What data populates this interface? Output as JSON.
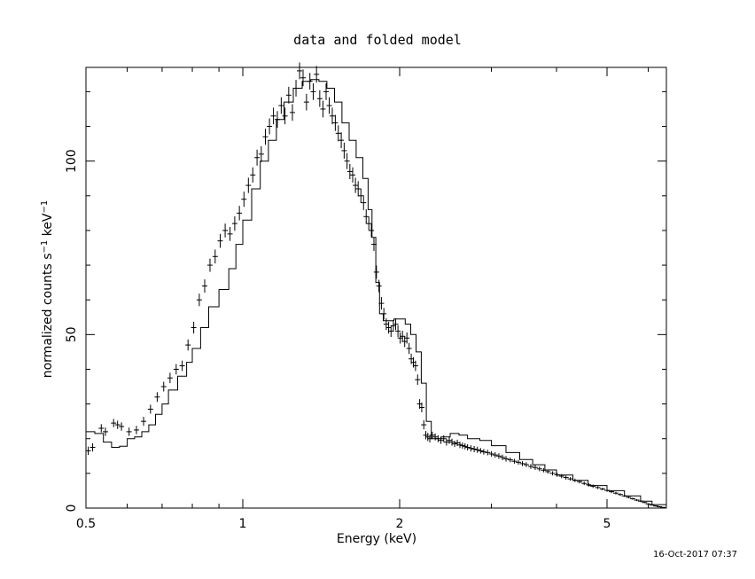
{
  "chart_data": {
    "type": "line",
    "title": "data and folded model",
    "xlabel": "Energy (keV)",
    "ylabel_parts": {
      "base": "normalized counts s",
      "exp1": "−1",
      "mid": " keV",
      "exp2": "−1"
    },
    "x_scale": "log",
    "xlim": [
      0.5,
      6.5
    ],
    "ylim": [
      0,
      127
    ],
    "x_ticks": [
      {
        "value": 0.5,
        "label": "0.5"
      },
      {
        "value": 1,
        "label": "1"
      },
      {
        "value": 2,
        "label": "2"
      },
      {
        "value": 5,
        "label": "5"
      }
    ],
    "y_ticks": [
      {
        "value": 0,
        "label": "0"
      },
      {
        "value": 50,
        "label": "50"
      },
      {
        "value": 100,
        "label": "100"
      }
    ],
    "series": [
      {
        "style": "step-line",
        "points": [
          [
            0.5,
            22.0
          ],
          [
            0.52,
            21.5
          ],
          [
            0.54,
            19.0
          ],
          [
            0.56,
            17.5
          ],
          [
            0.58,
            17.8
          ],
          [
            0.6,
            20.0
          ],
          [
            0.62,
            20.5
          ],
          [
            0.64,
            22.0
          ],
          [
            0.66,
            24.0
          ],
          [
            0.68,
            27.0
          ],
          [
            0.7,
            30.0
          ],
          [
            0.72,
            34.0
          ],
          [
            0.75,
            38.0
          ],
          [
            0.78,
            42.0
          ],
          [
            0.8,
            46.0
          ],
          [
            0.83,
            52.0
          ],
          [
            0.86,
            58.0
          ],
          [
            0.9,
            63.0
          ],
          [
            0.94,
            69.0
          ],
          [
            0.97,
            76.0
          ],
          [
            1.0,
            83.0
          ],
          [
            1.04,
            92.0
          ],
          [
            1.08,
            100.0
          ],
          [
            1.12,
            106.0
          ],
          [
            1.16,
            112.0
          ],
          [
            1.2,
            117.0
          ],
          [
            1.25,
            121.0
          ],
          [
            1.3,
            123.0
          ],
          [
            1.35,
            123.5
          ],
          [
            1.4,
            123.0
          ],
          [
            1.45,
            121.0
          ],
          [
            1.5,
            117.0
          ],
          [
            1.55,
            111.0
          ],
          [
            1.6,
            106.0
          ],
          [
            1.65,
            101.0
          ],
          [
            1.7,
            95.0
          ],
          [
            1.74,
            86.0
          ],
          [
            1.77,
            78.0
          ],
          [
            1.8,
            65.0
          ],
          [
            1.83,
            56.0
          ],
          [
            1.86,
            54.0
          ],
          [
            1.9,
            54.0
          ],
          [
            1.95,
            54.5
          ],
          [
            2.0,
            54.5
          ],
          [
            2.05,
            53.0
          ],
          [
            2.1,
            50.0
          ],
          [
            2.15,
            45.0
          ],
          [
            2.2,
            36.0
          ],
          [
            2.25,
            25.0
          ],
          [
            2.3,
            20.0
          ],
          [
            2.4,
            20.5
          ],
          [
            2.5,
            21.5
          ],
          [
            2.6,
            21.0
          ],
          [
            2.7,
            20.0
          ],
          [
            2.85,
            19.5
          ],
          [
            3.0,
            18.0
          ],
          [
            3.2,
            16.0
          ],
          [
            3.4,
            14.0
          ],
          [
            3.6,
            12.5
          ],
          [
            3.8,
            11.0
          ],
          [
            4.0,
            9.5
          ],
          [
            4.3,
            8.0
          ],
          [
            4.6,
            6.5
          ],
          [
            5.0,
            5.0
          ],
          [
            5.4,
            3.5
          ],
          [
            5.8,
            2.0
          ],
          [
            6.1,
            1.0
          ],
          [
            6.5,
            0.3
          ]
        ]
      },
      {
        "style": "errorbar-crosses",
        "points": [
          [
            0.505,
            16.5,
            1.2
          ],
          [
            0.515,
            17.5,
            1.2
          ],
          [
            0.535,
            23.0,
            1.2
          ],
          [
            0.545,
            22.0,
            1.2
          ],
          [
            0.565,
            24.5,
            1.2
          ],
          [
            0.575,
            24.0,
            1.2
          ],
          [
            0.585,
            23.5,
            1.2
          ],
          [
            0.605,
            22.0,
            1.2
          ],
          [
            0.625,
            22.5,
            1.2
          ],
          [
            0.645,
            25.0,
            1.3
          ],
          [
            0.665,
            28.5,
            1.3
          ],
          [
            0.685,
            32.0,
            1.4
          ],
          [
            0.705,
            35.0,
            1.4
          ],
          [
            0.725,
            37.5,
            1.5
          ],
          [
            0.745,
            40.0,
            1.5
          ],
          [
            0.765,
            41.0,
            1.5
          ],
          [
            0.785,
            47.0,
            1.6
          ],
          [
            0.805,
            52.0,
            1.7
          ],
          [
            0.825,
            60.0,
            1.8
          ],
          [
            0.845,
            64.0,
            1.9
          ],
          [
            0.865,
            70.0,
            1.9
          ],
          [
            0.885,
            72.5,
            2.0
          ],
          [
            0.905,
            77.0,
            2.0
          ],
          [
            0.925,
            80.0,
            2.0
          ],
          [
            0.945,
            79.0,
            2.0
          ],
          [
            0.965,
            82.0,
            2.1
          ],
          [
            0.985,
            85.0,
            2.1
          ],
          [
            1.005,
            89.0,
            2.2
          ],
          [
            1.025,
            93.0,
            2.2
          ],
          [
            1.045,
            96.0,
            2.2
          ],
          [
            1.065,
            101.0,
            2.3
          ],
          [
            1.085,
            102.0,
            2.3
          ],
          [
            1.105,
            107.0,
            2.3
          ],
          [
            1.125,
            110.0,
            2.3
          ],
          [
            1.145,
            113.0,
            2.4
          ],
          [
            1.165,
            112.0,
            2.4
          ],
          [
            1.185,
            116.0,
            2.4
          ],
          [
            1.205,
            113.0,
            2.4
          ],
          [
            1.225,
            119.0,
            2.4
          ],
          [
            1.245,
            114.0,
            2.4
          ],
          [
            1.265,
            121.0,
            2.4
          ],
          [
            1.285,
            126.0,
            2.4
          ],
          [
            1.305,
            124.0,
            2.4
          ],
          [
            1.325,
            117.0,
            2.4
          ],
          [
            1.345,
            123.0,
            2.4
          ],
          [
            1.365,
            120.0,
            2.4
          ],
          [
            1.385,
            125.0,
            2.4
          ],
          [
            1.405,
            118.0,
            2.4
          ],
          [
            1.425,
            115.0,
            2.4
          ],
          [
            1.445,
            120.0,
            2.4
          ],
          [
            1.465,
            116.0,
            2.4
          ],
          [
            1.485,
            113.0,
            2.4
          ],
          [
            1.505,
            111.0,
            2.3
          ],
          [
            1.525,
            108.0,
            2.3
          ],
          [
            1.545,
            106.0,
            2.3
          ],
          [
            1.565,
            103.0,
            2.3
          ],
          [
            1.585,
            100.0,
            2.3
          ],
          [
            1.605,
            97.0,
            2.2
          ],
          [
            1.625,
            96.0,
            2.2
          ],
          [
            1.645,
            93.0,
            2.2
          ],
          [
            1.665,
            92.0,
            2.2
          ],
          [
            1.685,
            90.0,
            2.1
          ],
          [
            1.705,
            88.0,
            2.1
          ],
          [
            1.725,
            84.0,
            2.1
          ],
          [
            1.745,
            82.0,
            2.0
          ],
          [
            1.765,
            80.0,
            2.0
          ],
          [
            1.785,
            76.0,
            1.9
          ],
          [
            1.805,
            68.0,
            1.9
          ],
          [
            1.825,
            64.0,
            1.8
          ],
          [
            1.845,
            59.0,
            1.8
          ],
          [
            1.865,
            56.0,
            1.7
          ],
          [
            1.885,
            53.0,
            1.7
          ],
          [
            1.905,
            52.0,
            1.7
          ],
          [
            1.925,
            51.0,
            1.7
          ],
          [
            1.945,
            52.5,
            1.7
          ],
          [
            1.965,
            53.0,
            1.7
          ],
          [
            1.985,
            51.0,
            1.7
          ],
          [
            2.005,
            49.0,
            1.6
          ],
          [
            2.025,
            49.5,
            1.6
          ],
          [
            2.045,
            48.0,
            1.6
          ],
          [
            2.065,
            49.0,
            1.6
          ],
          [
            2.085,
            46.0,
            1.6
          ],
          [
            2.105,
            43.0,
            1.5
          ],
          [
            2.125,
            42.0,
            1.5
          ],
          [
            2.145,
            41.0,
            1.5
          ],
          [
            2.165,
            37.0,
            1.5
          ],
          [
            2.185,
            30.0,
            1.4
          ],
          [
            2.205,
            29.0,
            1.4
          ],
          [
            2.225,
            24.0,
            1.3
          ],
          [
            2.245,
            21.0,
            1.2
          ],
          [
            2.265,
            20.5,
            1.2
          ],
          [
            2.285,
            20.0,
            1.1
          ],
          [
            2.31,
            21.0,
            1.0
          ],
          [
            2.34,
            20.5,
            1.0
          ],
          [
            2.37,
            20.0,
            1.0
          ],
          [
            2.4,
            19.5,
            1.0
          ],
          [
            2.43,
            20.0,
            1.0
          ],
          [
            2.46,
            19.0,
            1.0
          ],
          [
            2.49,
            19.5,
            1.0
          ],
          [
            2.52,
            19.0,
            1.0
          ],
          [
            2.55,
            18.5,
            0.9
          ],
          [
            2.58,
            18.8,
            0.9
          ],
          [
            2.61,
            18.2,
            0.9
          ],
          [
            2.64,
            18.0,
            0.9
          ],
          [
            2.67,
            17.8,
            0.9
          ],
          [
            2.7,
            17.5,
            0.9
          ],
          [
            2.74,
            17.2,
            0.9
          ],
          [
            2.78,
            17.0,
            0.9
          ],
          [
            2.82,
            16.8,
            0.9
          ],
          [
            2.86,
            16.5,
            0.8
          ],
          [
            2.9,
            16.2,
            0.8
          ],
          [
            2.95,
            16.0,
            0.8
          ],
          [
            3.0,
            15.6,
            0.8
          ],
          [
            3.05,
            15.3,
            0.8
          ],
          [
            3.1,
            15.0,
            0.8
          ],
          [
            3.15,
            14.6,
            0.8
          ],
          [
            3.2,
            14.2,
            0.8
          ],
          [
            3.26,
            13.9,
            0.7
          ],
          [
            3.32,
            13.5,
            0.7
          ],
          [
            3.38,
            13.2,
            0.7
          ],
          [
            3.44,
            12.8,
            0.7
          ],
          [
            3.5,
            12.5,
            0.7
          ],
          [
            3.57,
            12.0,
            0.7
          ],
          [
            3.64,
            11.7,
            0.7
          ],
          [
            3.71,
            11.3,
            0.7
          ],
          [
            3.78,
            10.9,
            0.6
          ],
          [
            3.85,
            10.5,
            0.6
          ],
          [
            3.93,
            10.0,
            0.6
          ],
          [
            4.01,
            9.6,
            0.6
          ],
          [
            4.09,
            9.2,
            0.6
          ],
          [
            4.17,
            8.8,
            0.6
          ],
          [
            4.25,
            8.4,
            0.5
          ],
          [
            4.34,
            8.0,
            0.5
          ],
          [
            4.43,
            7.6,
            0.5
          ],
          [
            4.52,
            7.1,
            0.5
          ],
          [
            4.61,
            6.7,
            0.5
          ],
          [
            4.7,
            6.3,
            0.5
          ],
          [
            4.8,
            5.9,
            0.4
          ],
          [
            4.9,
            5.5,
            0.4
          ],
          [
            5.0,
            5.1,
            0.4
          ],
          [
            5.1,
            4.7,
            0.4
          ],
          [
            5.2,
            4.3,
            0.4
          ],
          [
            5.3,
            3.9,
            0.4
          ],
          [
            5.4,
            3.5,
            0.3
          ],
          [
            5.5,
            3.1,
            0.3
          ],
          [
            5.6,
            2.7,
            0.3
          ],
          [
            5.7,
            2.3,
            0.3
          ],
          [
            5.8,
            2.0,
            0.3
          ],
          [
            5.9,
            1.6,
            0.2
          ],
          [
            6.0,
            1.2,
            0.2
          ],
          [
            6.1,
            0.9,
            0.2
          ],
          [
            6.2,
            0.6,
            0.2
          ],
          [
            6.3,
            0.4,
            0.2
          ],
          [
            6.4,
            0.2,
            0.1
          ]
        ]
      }
    ]
  },
  "footer": {
    "timestamp": "16-Oct-2017 07:37"
  }
}
